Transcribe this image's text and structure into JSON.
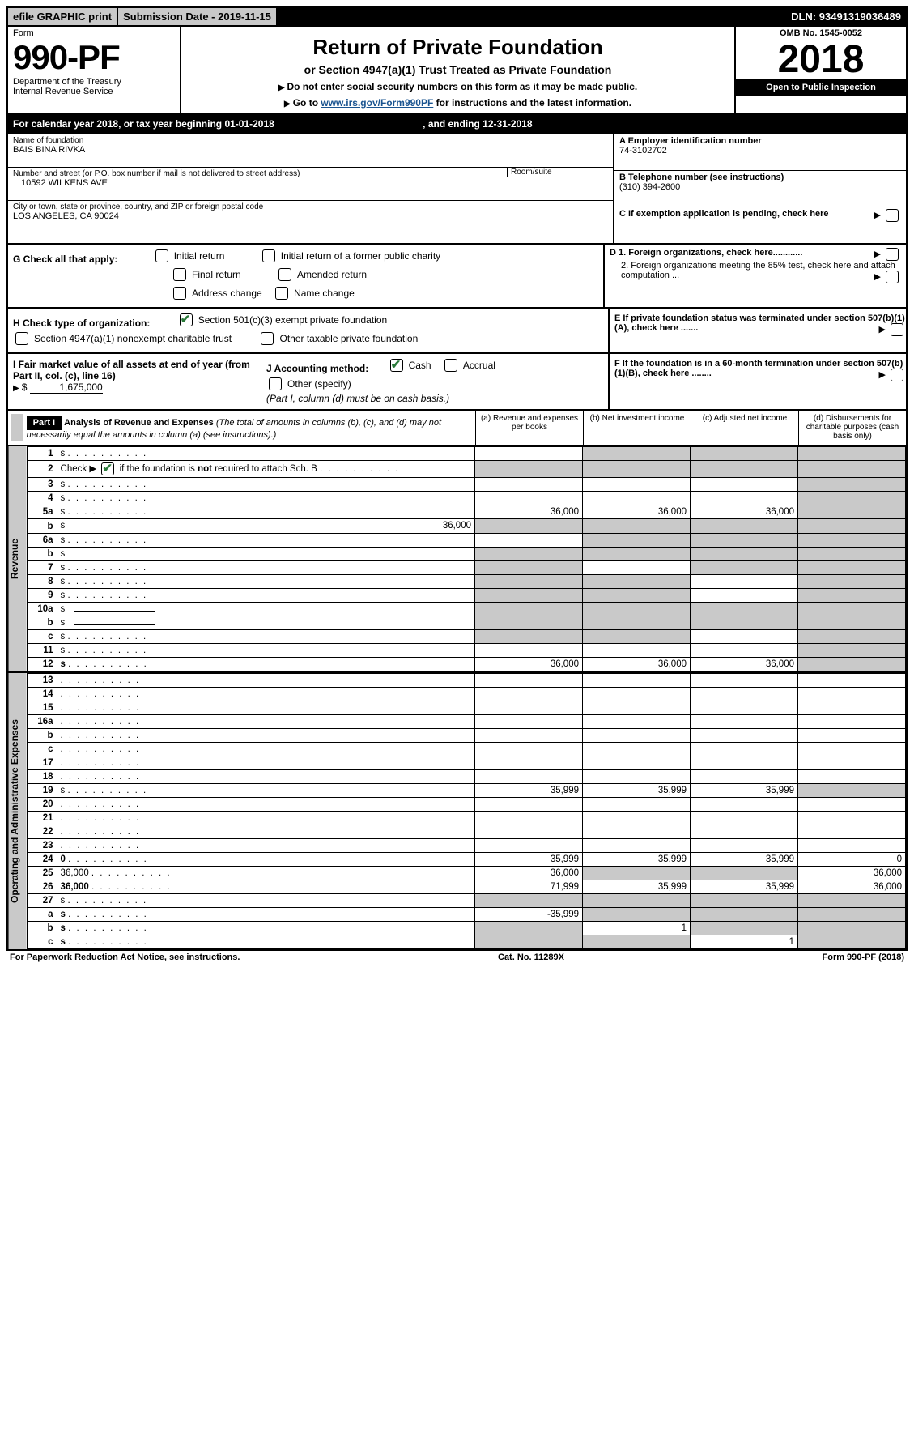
{
  "top": {
    "efile": "efile GRAPHIC print",
    "subdate_label": "Submission Date - ",
    "subdate": "2019-11-15",
    "dln_label": "DLN: ",
    "dln": "93491319036489"
  },
  "header": {
    "form_word": "Form",
    "form_no": "990-PF",
    "dept1": "Department of the Treasury",
    "dept2": "Internal Revenue Service",
    "title": "Return of Private Foundation",
    "subtitle": "or Section 4947(a)(1) Trust Treated as Private Foundation",
    "instr1": "Do not enter social security numbers on this form as it may be made public.",
    "instr2_pre": "Go to ",
    "instr2_link": "www.irs.gov/Form990PF",
    "instr2_post": " for instructions and the latest information.",
    "omb": "OMB No. 1545-0052",
    "year": "2018",
    "open": "Open to Public Inspection"
  },
  "calyear": {
    "text": "For calendar year 2018, or tax year beginning 01-01-2018",
    "ending": ", and ending 12-31-2018"
  },
  "identity": {
    "name_label": "Name of foundation",
    "name": "BAIS BINA RIVKA",
    "addr_label": "Number and street (or P.O. box number if mail is not delivered to street address)",
    "addr": "10592 WILKENS AVE",
    "room_label": "Room/suite",
    "city_label": "City or town, state or province, country, and ZIP or foreign postal code",
    "city": "LOS ANGELES, CA  90024",
    "a_label": "A Employer identification number",
    "a_val": "74-3102702",
    "b_label": "B Telephone number (see instructions)",
    "b_val": "(310) 394-2600",
    "c_label": "C If exemption application is pending, check here"
  },
  "checks": {
    "g_label": "G Check all that apply:",
    "g1": "Initial return",
    "g2": "Initial return of a former public charity",
    "g3": "Final return",
    "g4": "Amended return",
    "g5": "Address change",
    "g6": "Name change",
    "d1": "D 1. Foreign organizations, check here............",
    "d2": "2. Foreign organizations meeting the 85% test, check here and attach computation ...",
    "e": "E  If private foundation status was terminated under section 507(b)(1)(A), check here .......",
    "h_label": "H Check type of organization:",
    "h1": "Section 501(c)(3) exempt private foundation",
    "h2": "Section 4947(a)(1) nonexempt charitable trust",
    "h3": "Other taxable private foundation",
    "i_label": "I Fair market value of all assets at end of year (from Part II, col. (c), line 16)",
    "i_amt": "1,675,000",
    "j_label": "J Accounting method:",
    "j1": "Cash",
    "j2": "Accrual",
    "j3": "Other (specify)",
    "j_note": "(Part I, column (d) must be on cash basis.)",
    "f": "F  If the foundation is in a 60-month termination under section 507(b)(1)(B), check here ........"
  },
  "part1": {
    "label": "Part I",
    "title": "Analysis of Revenue and Expenses",
    "subtitle": "(The total of amounts in columns (b), (c), and (d) may not necessarily equal the amounts in column (a) (see instructions).)",
    "cols": {
      "a": "(a)   Revenue and expenses per books",
      "b": "(b)   Net investment income",
      "c": "(c)   Adjusted net income",
      "d": "(d)   Disbursements for charitable purposes (cash basis only)"
    },
    "side_rev": "Revenue",
    "side_exp": "Operating and Administrative Expenses",
    "rows": [
      {
        "n": "1",
        "d": "s",
        "a": "",
        "b": "s",
        "c": "s"
      },
      {
        "n": "2",
        "d": "s",
        "a": "s",
        "b": "s",
        "c": "s",
        "nobold": true,
        "checkrow": true
      },
      {
        "n": "3",
        "d": "s",
        "a": "",
        "b": "",
        "c": ""
      },
      {
        "n": "4",
        "d": "s",
        "a": "",
        "b": "",
        "c": ""
      },
      {
        "n": "5a",
        "d": "s",
        "a": "36,000",
        "b": "36,000",
        "c": "36,000"
      },
      {
        "n": "b",
        "d": "s",
        "inline": "36,000",
        "a": "s",
        "b": "s",
        "c": "s"
      },
      {
        "n": "6a",
        "d": "s",
        "a": "",
        "b": "s",
        "c": "s"
      },
      {
        "n": "b",
        "d": "s",
        "a": "s",
        "b": "s",
        "c": "s",
        "inlinerule": true
      },
      {
        "n": "7",
        "d": "s",
        "a": "s",
        "b": "",
        "c": "s"
      },
      {
        "n": "8",
        "d": "s",
        "a": "s",
        "b": "s",
        "c": ""
      },
      {
        "n": "9",
        "d": "s",
        "a": "s",
        "b": "s",
        "c": ""
      },
      {
        "n": "10a",
        "d": "s",
        "a": "s",
        "b": "s",
        "c": "s",
        "inlinerule": true
      },
      {
        "n": "b",
        "d": "s",
        "a": "s",
        "b": "s",
        "c": "s",
        "inlinerule": true
      },
      {
        "n": "c",
        "d": "s",
        "a": "s",
        "b": "s",
        "c": ""
      },
      {
        "n": "11",
        "d": "s",
        "a": "",
        "b": "",
        "c": ""
      },
      {
        "n": "12",
        "d": "s",
        "a": "36,000",
        "b": "36,000",
        "c": "36,000",
        "bold": true
      }
    ],
    "rows_exp": [
      {
        "n": "13",
        "d": "",
        "a": "",
        "b": "",
        "c": ""
      },
      {
        "n": "14",
        "d": "",
        "a": "",
        "b": "",
        "c": ""
      },
      {
        "n": "15",
        "d": "",
        "a": "",
        "b": "",
        "c": ""
      },
      {
        "n": "16a",
        "d": "",
        "a": "",
        "b": "",
        "c": ""
      },
      {
        "n": "b",
        "d": "",
        "a": "",
        "b": "",
        "c": ""
      },
      {
        "n": "c",
        "d": "",
        "a": "",
        "b": "",
        "c": ""
      },
      {
        "n": "17",
        "d": "",
        "a": "",
        "b": "",
        "c": ""
      },
      {
        "n": "18",
        "d": "",
        "a": "",
        "b": "",
        "c": ""
      },
      {
        "n": "19",
        "d": "s",
        "a": "35,999",
        "b": "35,999",
        "c": "35,999"
      },
      {
        "n": "20",
        "d": "",
        "a": "",
        "b": "",
        "c": ""
      },
      {
        "n": "21",
        "d": "",
        "a": "",
        "b": "",
        "c": ""
      },
      {
        "n": "22",
        "d": "",
        "a": "",
        "b": "",
        "c": ""
      },
      {
        "n": "23",
        "d": "",
        "a": "",
        "b": "",
        "c": ""
      },
      {
        "n": "24",
        "d": "0",
        "a": "35,999",
        "b": "35,999",
        "c": "35,999",
        "bold": true
      },
      {
        "n": "25",
        "d": "36,000",
        "a": "36,000",
        "b": "s",
        "c": "s"
      },
      {
        "n": "26",
        "d": "36,000",
        "a": "71,999",
        "b": "35,999",
        "c": "35,999",
        "bold": true
      },
      {
        "n": "27",
        "d": "s",
        "a": "s",
        "b": "s",
        "c": "s"
      },
      {
        "n": "a",
        "d": "s",
        "a": "-35,999",
        "b": "s",
        "c": "s",
        "bold": true
      },
      {
        "n": "b",
        "d": "s",
        "a": "s",
        "b": "1",
        "c": "s",
        "bold": true
      },
      {
        "n": "c",
        "d": "s",
        "a": "s",
        "b": "s",
        "c": "1",
        "bold": true
      }
    ]
  },
  "footer": {
    "left": "For Paperwork Reduction Act Notice, see instructions.",
    "mid": "Cat. No. 11289X",
    "right": "Form 990-PF (2018)"
  }
}
